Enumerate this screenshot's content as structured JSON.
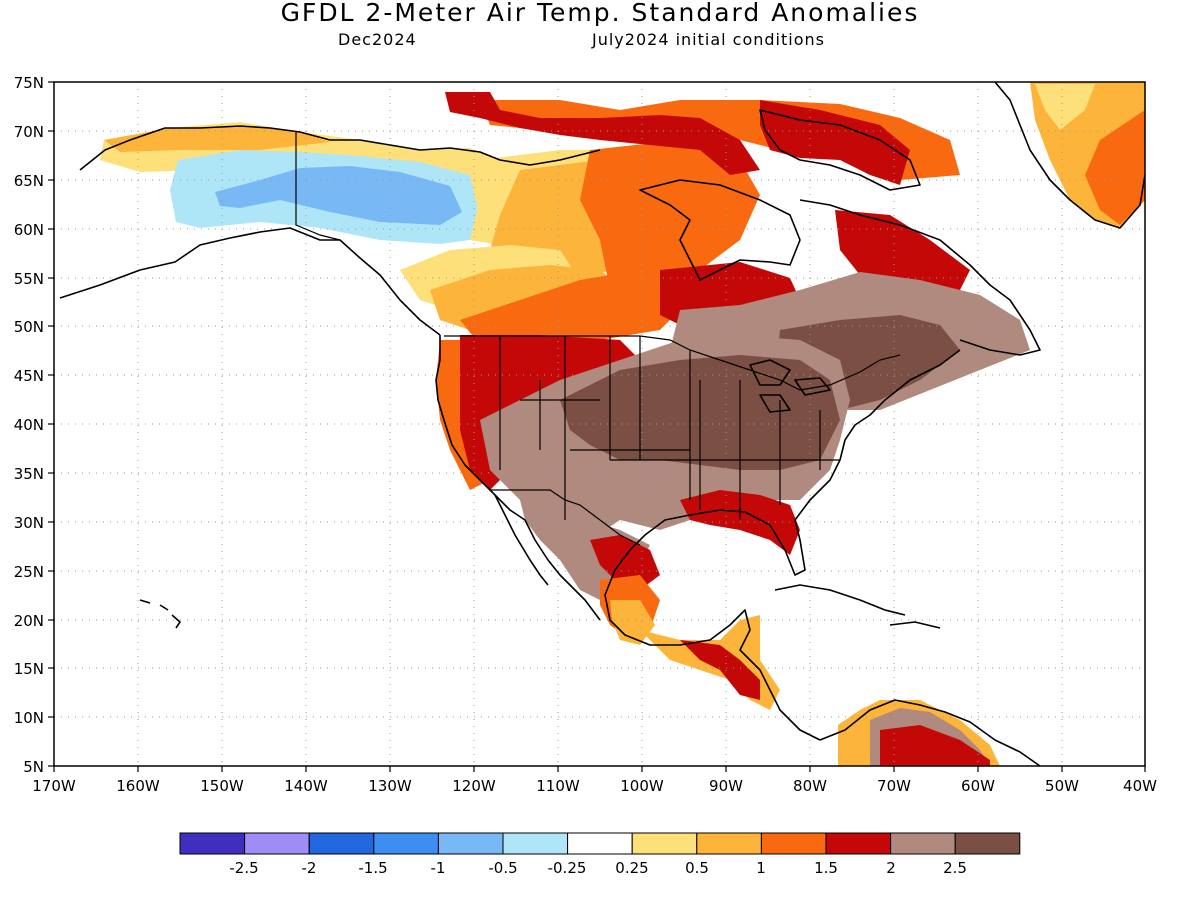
{
  "title": "GFDL 2-Meter Air Temp. Standard Anomalies",
  "subtitle_left": "Dec2024",
  "subtitle_right": "July2024 initial conditions",
  "lat_labels": [
    "75N",
    "70N",
    "65N",
    "60N",
    "55N",
    "50N",
    "45N",
    "40N",
    "35N",
    "30N",
    "25N",
    "20N",
    "15N",
    "10N",
    "5N"
  ],
  "lon_labels": [
    "170W",
    "160W",
    "150W",
    "140W",
    "130W",
    "120W",
    "110W",
    "100W",
    "90W",
    "80W",
    "70W",
    "60W",
    "50W",
    "40W"
  ],
  "legend": {
    "labels": [
      "-2.5",
      "-2",
      "-1.5",
      "-1",
      "-0.5",
      "-0.25",
      "0.25",
      "0.5",
      "1",
      "1.5",
      "2",
      "2.5"
    ],
    "colors": [
      "#3f2fbf",
      "#a08cf5",
      "#2266e0",
      "#3c8ef0",
      "#78b8f4",
      "#aee6f8",
      "#ffffff",
      "#fde07a",
      "#fcb43a",
      "#f96a10",
      "#c40808",
      "#b08a7e",
      "#7b4f44"
    ]
  },
  "colors": {
    "cold_light": "#aee6f8",
    "cold": "#78b8f4",
    "warm_light": "#fde07a",
    "warm": "#fcb43a",
    "warm_orange": "#f96a10",
    "warm_red": "#c40808",
    "warm_brown_light": "#b08a7e",
    "warm_brown": "#7b4f44"
  }
}
